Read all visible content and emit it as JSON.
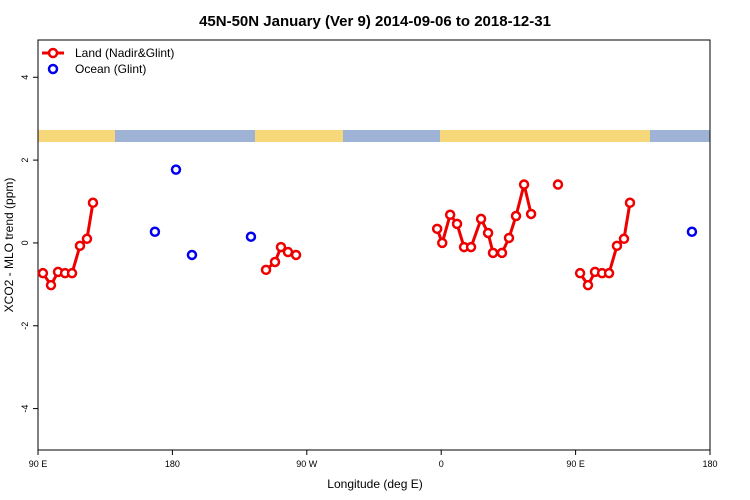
{
  "chart_data": {
    "type": "line",
    "title": "45N-50N January (Ver 9)   2014-09-06 to 2018-12-31",
    "x_label": "Longitude (deg E)",
    "y_label": "XCO2 - MLO trend (ppm)",
    "xlim": [
      90,
      540
    ],
    "ylim": [
      -5,
      4.9
    ],
    "xticks": [
      {
        "value": 90,
        "label": "90 E"
      },
      {
        "value": 180,
        "label": "180"
      },
      {
        "value": 270,
        "label": "90 W"
      },
      {
        "value": 360,
        "label": "0"
      },
      {
        "value": 450,
        "label": "90 E"
      },
      {
        "value": 540,
        "label": "180"
      }
    ],
    "yticks": [
      -4,
      -2,
      0,
      2,
      4
    ],
    "legend": "top-left",
    "series": [
      {
        "name": "Land (Nadir&Glint)",
        "color": "#ee0000",
        "lines": true,
        "x": [
          93.3,
          98.7,
          103.4,
          108.1,
          112.8,
          118.1,
          122.8,
          126.8,
          null,
          242.7,
          248.7,
          252.7,
          257.4,
          262.8,
          null,
          357.3,
          360.7,
          366.0,
          370.6,
          375.3,
          380.0,
          386.7,
          391.4,
          394.7,
          400.7,
          405.4,
          410.1,
          415.5,
          420.2,
          null,
          438.2,
          null,
          453.0,
          458.3,
          463.0,
          467.7,
          472.4,
          477.7,
          482.4,
          486.4
        ],
        "values": [
          -0.73,
          -1.02,
          -0.7,
          -0.73,
          -0.73,
          -0.07,
          0.1,
          0.97,
          null,
          -0.65,
          -0.46,
          -0.1,
          -0.22,
          -0.29,
          null,
          0.34,
          0.0,
          0.68,
          0.46,
          -0.1,
          -0.1,
          0.58,
          0.24,
          -0.24,
          -0.24,
          0.12,
          0.65,
          1.41,
          0.7,
          null,
          1.41,
          null,
          -0.73,
          -1.02,
          -0.7,
          -0.73,
          -0.73,
          -0.07,
          0.1,
          0.97
        ]
      },
      {
        "name": "Ocean (Glint)",
        "color": "#0000ee",
        "lines": false,
        "x": [
          168.3,
          182.4,
          193.1,
          232.6,
          527.9
        ],
        "values": [
          0.27,
          1.77,
          -0.29,
          0.15,
          0.27
        ]
      }
    ]
  }
}
